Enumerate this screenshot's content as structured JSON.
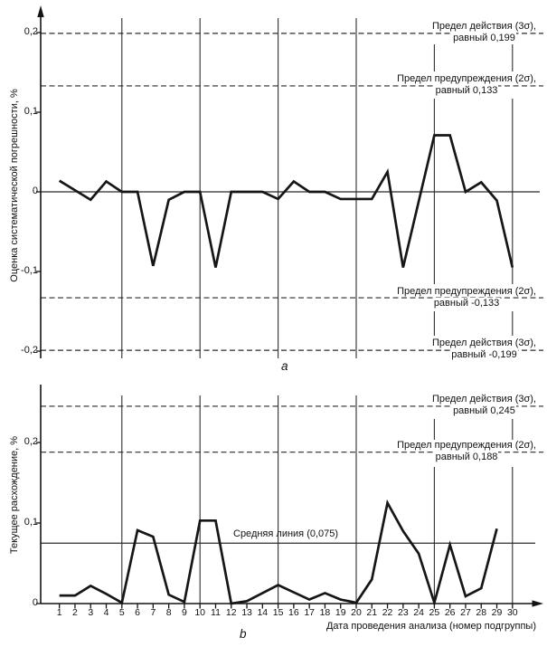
{
  "page": {
    "background": "#ffffff",
    "line_color": "#161616"
  },
  "chart_data": [
    {
      "panel_label": "a",
      "type": "line",
      "ylabel": "Оценка систематической погрешности, %",
      "ylim": [
        -0.22,
        0.22
      ],
      "grid": "vertical-only",
      "yticks": [
        {
          "value": 0.2,
          "label": "0,2"
        },
        {
          "value": 0.1,
          "label": "0,1"
        },
        {
          "value": 0,
          "label": "0"
        },
        {
          "value": -0.1,
          "label": "-0,1"
        },
        {
          "value": -0.2,
          "label": "-0,2"
        }
      ],
      "x_gridlines": [
        5,
        10,
        15,
        20,
        25,
        30
      ],
      "x_start": 1,
      "x": [
        1,
        2,
        3,
        4,
        5,
        6,
        7,
        8,
        9,
        10,
        11,
        12,
        13,
        14,
        15,
        16,
        17,
        18,
        19,
        20,
        21,
        22,
        23,
        24,
        25,
        26,
        27,
        28,
        29,
        30
      ],
      "values": [
        0.014,
        0.002,
        -0.01,
        0.013,
        0.0,
        0.0,
        -0.093,
        -0.01,
        0.0,
        0.0,
        -0.095,
        0.0,
        0.0,
        0.0,
        -0.009,
        0.013,
        0.0,
        0.0,
        -0.009,
        -0.009,
        -0.009,
        0.025,
        -0.095,
        -0.012,
        0.071,
        0.071,
        0.0,
        0.012,
        -0.011,
        -0.095
      ],
      "center_line": {
        "value": 0
      },
      "limits": [
        {
          "value": 0.199,
          "label1": "Предел действия (3σ),",
          "label2": "равный 0,199"
        },
        {
          "value": 0.133,
          "label1": "Предел предупреждения (2σ),",
          "label2": "равный 0,133"
        },
        {
          "value": -0.133,
          "label1": "Предел предупреждения (2σ),",
          "label2": "равный -0,133"
        },
        {
          "value": -0.199,
          "label1": "Предел действия (3σ),",
          "label2": "равный -0,199"
        }
      ]
    },
    {
      "panel_label": "b",
      "type": "line",
      "ylabel": "Текущее расхождение, %",
      "xlabel": "Дата проведения анализа (номер подгруппы)",
      "ylim": [
        0,
        0.27
      ],
      "grid": "vertical-only",
      "yticks": [
        {
          "value": 0.2,
          "label": "0,2"
        },
        {
          "value": 0.1,
          "label": "0,1"
        },
        {
          "value": 0,
          "label": "0"
        }
      ],
      "x_gridlines": [
        5,
        10,
        15,
        20,
        25,
        30
      ],
      "xticks": [
        "1",
        "2",
        "3",
        "4",
        "5",
        "6",
        "7",
        "8",
        "9",
        "10",
        "11",
        "12",
        "13",
        "14",
        "15",
        "16",
        "17",
        "18",
        "19",
        "20",
        "21",
        "22",
        "23",
        "24",
        "25",
        "26",
        "27",
        "28",
        "29",
        "30"
      ],
      "x_start": 1,
      "x": [
        1,
        2,
        3,
        4,
        5,
        6,
        7,
        8,
        9,
        10,
        11,
        12,
        13,
        14,
        15,
        16,
        17,
        18,
        19,
        20,
        21,
        22,
        23,
        24,
        25,
        26,
        27,
        28,
        29
      ],
      "values": [
        0.01,
        0.01,
        0.022,
        0.012,
        0.001,
        0.091,
        0.083,
        0.011,
        0.002,
        0.103,
        0.103,
        0.0,
        0.003,
        0.013,
        0.023,
        0.014,
        0.005,
        0.013,
        0.005,
        0.001,
        0.03,
        0.125,
        0.09,
        0.062,
        0.001,
        0.073,
        0.009,
        0.019,
        0.093
      ],
      "center_line": {
        "value": 0.075,
        "label": "Средняя линия (0,075)"
      },
      "limits": [
        {
          "value": 0.245,
          "label1": "Предел действия (3σ),",
          "label2": "равный 0,245"
        },
        {
          "value": 0.188,
          "label1": "Предел предупреждения (2σ),",
          "label2": "равный 0,188"
        }
      ]
    }
  ]
}
